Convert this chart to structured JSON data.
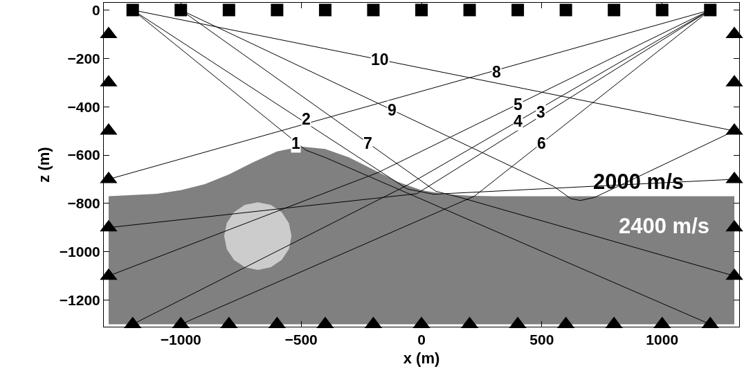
{
  "chart_data": {
    "type": "line",
    "xlabel": "x (m)",
    "ylabel": "z (m)",
    "xlim": [
      -1320,
      1320
    ],
    "ylim": [
      -1310,
      30
    ],
    "xticks": [
      -1000,
      -500,
      0,
      500,
      1000
    ],
    "yticks": [
      0,
      -200,
      -400,
      -600,
      -800,
      -1000,
      -1200
    ],
    "grid": false,
    "series": [
      {
        "type": "area",
        "color": "#808080",
        "x": [
          -1300,
          -1100,
          -1000,
          -900,
          -800,
          -700,
          -600,
          -500,
          -400,
          -300,
          -200,
          -100,
          0,
          100,
          200,
          300,
          1300,
          1300,
          -1300
        ],
        "values": [
          -770,
          -760,
          -745,
          -720,
          -680,
          -630,
          -585,
          -565,
          -575,
          -610,
          -660,
          -710,
          -745,
          -762,
          -768,
          -770,
          -770,
          -1300,
          -1300
        ]
      },
      {
        "type": "area",
        "color": "#cccccc",
        "x": [
          -540,
          -551,
          -581,
          -626,
          -680,
          -734,
          -779,
          -809,
          -820,
          -809,
          -779,
          -734,
          -680,
          -626,
          -581,
          -551
        ],
        "values": [
          -935,
          -881,
          -836,
          -806,
          -795,
          -806,
          -836,
          -881,
          -935,
          -989,
          -1034,
          -1064,
          -1075,
          -1064,
          -1034,
          -989
        ]
      },
      {
        "color": "#000000",
        "x": [
          -1200,
          -480,
          -400,
          1200
        ],
        "values": [
          0,
          -580,
          -610,
          -1300
        ]
      },
      {
        "color": "#000000",
        "x": [
          -1200,
          -60,
          50,
          1300
        ],
        "values": [
          0,
          -740,
          -762,
          -700
        ]
      },
      {
        "color": "#000000",
        "x": [
          1200,
          -20,
          -1300
        ],
        "values": [
          0,
          -760,
          -900
        ]
      },
      {
        "color": "#000000",
        "x": [
          1200,
          -60,
          -1200
        ],
        "values": [
          0,
          -725,
          -1300
        ]
      },
      {
        "color": "#000000",
        "x": [
          1200,
          -180,
          -1300
        ],
        "values": [
          0,
          -672,
          -1100
        ]
      },
      {
        "color": "#000000",
        "x": [
          1200,
          220,
          -1000
        ],
        "values": [
          0,
          -770,
          -1300
        ]
      },
      {
        "color": "#000000",
        "x": [
          -1000,
          60,
          160,
          1300
        ],
        "values": [
          0,
          -750,
          -775,
          -1100
        ]
      },
      {
        "color": "#000000",
        "x": [
          1200,
          -1300
        ],
        "values": [
          0,
          -700
        ]
      },
      {
        "color": "#000000",
        "x": [
          -1000,
          550,
          620,
          660,
          720,
          1300
        ],
        "values": [
          0,
          -730,
          -780,
          -788,
          -775,
          -500
        ]
      },
      {
        "color": "#000000",
        "x": [
          -1200,
          1300
        ],
        "values": [
          0,
          -500
        ]
      },
      {
        "type": "scatter",
        "color": "#000000",
        "marker": "square",
        "x": [
          -1200,
          -1000,
          -800,
          -600,
          -400,
          -200,
          0,
          200,
          400,
          600,
          800,
          1000,
          1200
        ],
        "values": [
          0,
          0,
          0,
          0,
          0,
          0,
          0,
          0,
          0,
          0,
          0,
          0,
          0
        ]
      },
      {
        "type": "scatter",
        "color": "#000000",
        "marker": "triangle",
        "x": [
          -1300,
          -1300,
          -1300,
          -1300,
          -1300,
          -1300,
          1300,
          1300,
          1300,
          1300,
          1300,
          1300,
          -1200,
          -1000,
          -800,
          -600,
          -400,
          -200,
          0,
          200,
          400,
          600,
          800,
          1000,
          1200
        ],
        "values": [
          -100,
          -300,
          -500,
          -700,
          -900,
          -1100,
          -100,
          -300,
          -500,
          -700,
          -900,
          -1100,
          -1300,
          -1300,
          -1300,
          -1300,
          -1300,
          -1300,
          -1300,
          -1300,
          -1300,
          -1300,
          -1300,
          -1300,
          -1300
        ]
      }
    ],
    "annotations": [
      {
        "text": "1",
        "x": -522,
        "y": -551
      },
      {
        "text": "2",
        "x": -478,
        "y": -450
      },
      {
        "text": "3",
        "x": 496,
        "y": -421
      },
      {
        "text": "4",
        "x": 400,
        "y": -460
      },
      {
        "text": "5",
        "x": 400,
        "y": -392
      },
      {
        "text": "6",
        "x": 500,
        "y": -550
      },
      {
        "text": "7",
        "x": -223,
        "y": -551
      },
      {
        "text": "8",
        "x": 313,
        "y": -257
      },
      {
        "text": "9",
        "x": -122,
        "y": -413
      },
      {
        "text": "10",
        "x": -174,
        "y": -205
      },
      {
        "text": "2000 m/s",
        "x": 901,
        "y": -710
      },
      "2400 m/s"
    ]
  }
}
